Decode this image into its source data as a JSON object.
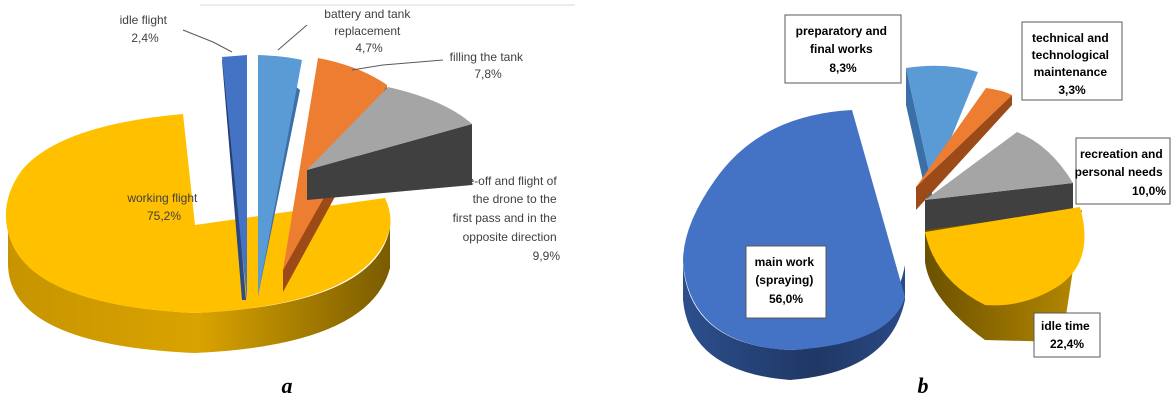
{
  "chart_data": [
    {
      "type": "pie",
      "panel_label": "a",
      "slices": [
        {
          "label_lines": [
            "idle flight"
          ],
          "value_text": "2,4%",
          "value": 2.4,
          "color": "#4472c4"
        },
        {
          "label_lines": [
            "battery and tank",
            "replacement"
          ],
          "value_text": "4,7%",
          "value": 4.7,
          "color": "#5b9bd5"
        },
        {
          "label_lines": [
            "filling the tank"
          ],
          "value_text": "7,8%",
          "value": 7.8,
          "color": "#ed7d31"
        },
        {
          "label_lines": [
            "take-off and flight of",
            "the drone to the",
            "first pass and in the",
            "opposite direction"
          ],
          "value_text": "9,9%",
          "value": 9.9,
          "color": "#a5a5a5"
        },
        {
          "label_lines": [
            "working flight"
          ],
          "value_text": "75,2%",
          "value": 75.2,
          "color": "#ffc000"
        }
      ]
    },
    {
      "type": "pie",
      "panel_label": "b",
      "slices": [
        {
          "label_lines": [
            "main work",
            "(spraying)"
          ],
          "value_text": "56,0%",
          "value": 56.0,
          "color": "#4472c4"
        },
        {
          "label_lines": [
            "preparatory and",
            "final works"
          ],
          "value_text": "8,3%",
          "value": 8.3,
          "color": "#5b9bd5"
        },
        {
          "label_lines": [
            "technical and",
            "technological",
            "maintenance"
          ],
          "value_text": "3,3%",
          "value": 3.3,
          "color": "#ed7d31"
        },
        {
          "label_lines": [
            "recreation and",
            "personal needs"
          ],
          "value_text": "10,0%",
          "value": 10.0,
          "color": "#a5a5a5"
        },
        {
          "label_lines": [
            "idle time"
          ],
          "value_text": "22,4%",
          "value": 22.4,
          "color": "#ffc000"
        }
      ]
    }
  ]
}
